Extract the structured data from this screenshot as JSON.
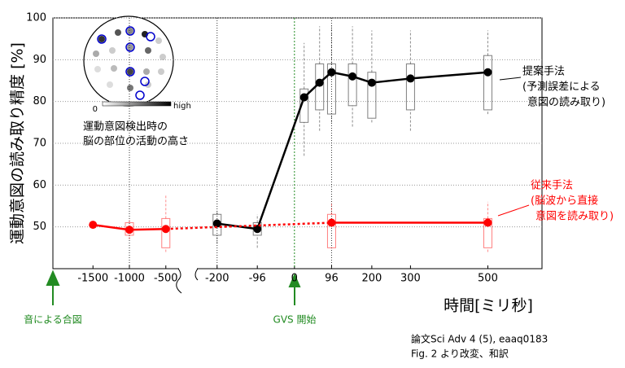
{
  "chart_data": {
    "type": "line",
    "ylabel": "運動意図の読み取り精度 [%]",
    "xlabel": "時間[ミリ秒]",
    "xlim": [
      -2050,
      640
    ],
    "x_break": [
      -330,
      -250
    ],
    "ylim": [
      40,
      100
    ],
    "xticks": [
      -1500,
      -1000,
      -500,
      -200,
      -96,
      0,
      96,
      200,
      300,
      500
    ],
    "yticks": [
      50,
      60,
      70,
      80,
      90,
      100
    ],
    "grid": true,
    "series": [
      {
        "name": "提案手法",
        "color": "#000000",
        "x": [
          -200,
          -96,
          25,
          65,
          96,
          150,
          200,
          300,
          500
        ],
        "values": [
          50.8,
          49.5,
          81,
          84.5,
          87,
          86,
          84.5,
          85.5,
          87
        ],
        "boxes": [
          {
            "x": -200,
            "whislo": 46,
            "q1": 48,
            "q3": 53,
            "whishi": 54
          },
          {
            "x": -96,
            "whislo": 45,
            "q1": 48,
            "q3": 51,
            "whishi": 53
          },
          {
            "x": 25,
            "whislo": 67,
            "q1": 75,
            "q3": 83,
            "whishi": 94
          },
          {
            "x": 65,
            "whislo": 73,
            "q1": 78,
            "q3": 89,
            "whishi": 98
          },
          {
            "x": 96,
            "whislo": 75,
            "q1": 77,
            "q3": 89,
            "whishi": 98
          },
          {
            "x": 150,
            "whislo": 74,
            "q1": 79,
            "q3": 89,
            "whishi": 98
          },
          {
            "x": 200,
            "whislo": 75,
            "q1": 76,
            "q3": 87,
            "whishi": 97
          },
          {
            "x": 300,
            "whislo": 73,
            "q1": 78,
            "q3": 89,
            "whishi": 97
          },
          {
            "x": 500,
            "whislo": 77,
            "q1": 78,
            "q3": 91,
            "whishi": 97
          }
        ]
      },
      {
        "name": "従来手法",
        "color": "#ff0000",
        "x": [
          -1500,
          -1000,
          -500,
          96,
          500
        ],
        "values": [
          50.5,
          49.3,
          49.5,
          51,
          51
        ],
        "boxes": [
          {
            "x": -1000,
            "whislo": 47,
            "q1": 48,
            "q3": 51,
            "whishi": 52
          },
          {
            "x": -500,
            "whislo": 44,
            "q1": 45,
            "q3": 52,
            "whishi": 57.5
          },
          {
            "x": 96,
            "whislo": 45,
            "q1": 45,
            "q3": 53,
            "whishi": 56
          },
          {
            "x": 500,
            "whislo": 44,
            "q1": 45,
            "q3": 52,
            "whishi": 56
          }
        ]
      }
    ],
    "vlines": [
      -1000,
      -200,
      96
    ],
    "green_vline": 0,
    "annotations": {
      "proposed": [
        "(予測誤差による",
        "意図の読み取り)"
      ],
      "conventional": [
        "(脳波から直接",
        "意図を読み取り)"
      ],
      "cue": "音による合図",
      "gvs": "GVS 開始",
      "inset_low": "0",
      "inset_high": "high",
      "inset_caption": [
        "運動意図検出時の",
        "脳の部位の活動の高さ"
      ],
      "source": [
        "論文Sci Adv 4 (5), eaaq0183",
        "Fig. 2 より改変、和訳"
      ]
    }
  }
}
